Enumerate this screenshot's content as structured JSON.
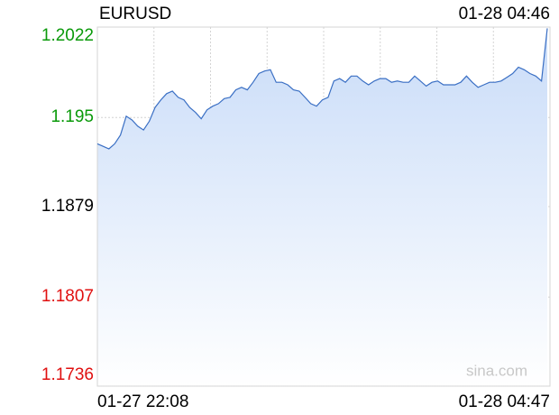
{
  "chart_data": {
    "type": "line",
    "title": "EURUSD",
    "timestamp": "01-28 04:46",
    "x_labels": [
      "01-27 22:08",
      "01-28 04:47"
    ],
    "watermark": "sina.com",
    "color": "#3a6fc4",
    "fill_color": "#c9dcf8",
    "values": [
      1.1929,
      1.1927,
      1.1925,
      1.1929,
      1.1936,
      1.1951,
      1.1948,
      1.1943,
      1.194,
      1.1947,
      1.1958,
      1.1964,
      1.1969,
      1.1971,
      1.1966,
      1.1964,
      1.1958,
      1.1954,
      1.1949,
      1.1956,
      1.1959,
      1.1961,
      1.1965,
      1.1966,
      1.1972,
      1.1974,
      1.1972,
      1.1978,
      1.1985,
      1.1987,
      1.1988,
      1.1978,
      1.1978,
      1.1976,
      1.1972,
      1.1971,
      1.1966,
      1.1961,
      1.1959,
      1.1964,
      1.1966,
      1.1979,
      1.1981,
      1.1978,
      1.1983,
      1.1983,
      1.1979,
      1.1976,
      1.1979,
      1.1981,
      1.1981,
      1.1978,
      1.1979,
      1.1978,
      1.1978,
      1.1983,
      1.1979,
      1.1975,
      1.1978,
      1.1979,
      1.1976,
      1.1976,
      1.1976,
      1.1978,
      1.1983,
      1.1978,
      1.1974,
      1.1976,
      1.1978,
      1.1978,
      1.1979,
      1.1982,
      1.1985,
      1.199,
      1.1988,
      1.1985,
      1.1983,
      1.1979,
      1.2021
    ],
    "ylim": [
      1.1736,
      1.2022
    ],
    "yticks": [
      1.2022,
      1.195,
      1.1879,
      1.1807,
      1.1736
    ],
    "ytick_colors": [
      "#0a9a0a",
      "#0a9a0a",
      "#000000",
      "#e01010",
      "#e01010"
    ],
    "xgrid_divisions": 8,
    "grid": true
  }
}
